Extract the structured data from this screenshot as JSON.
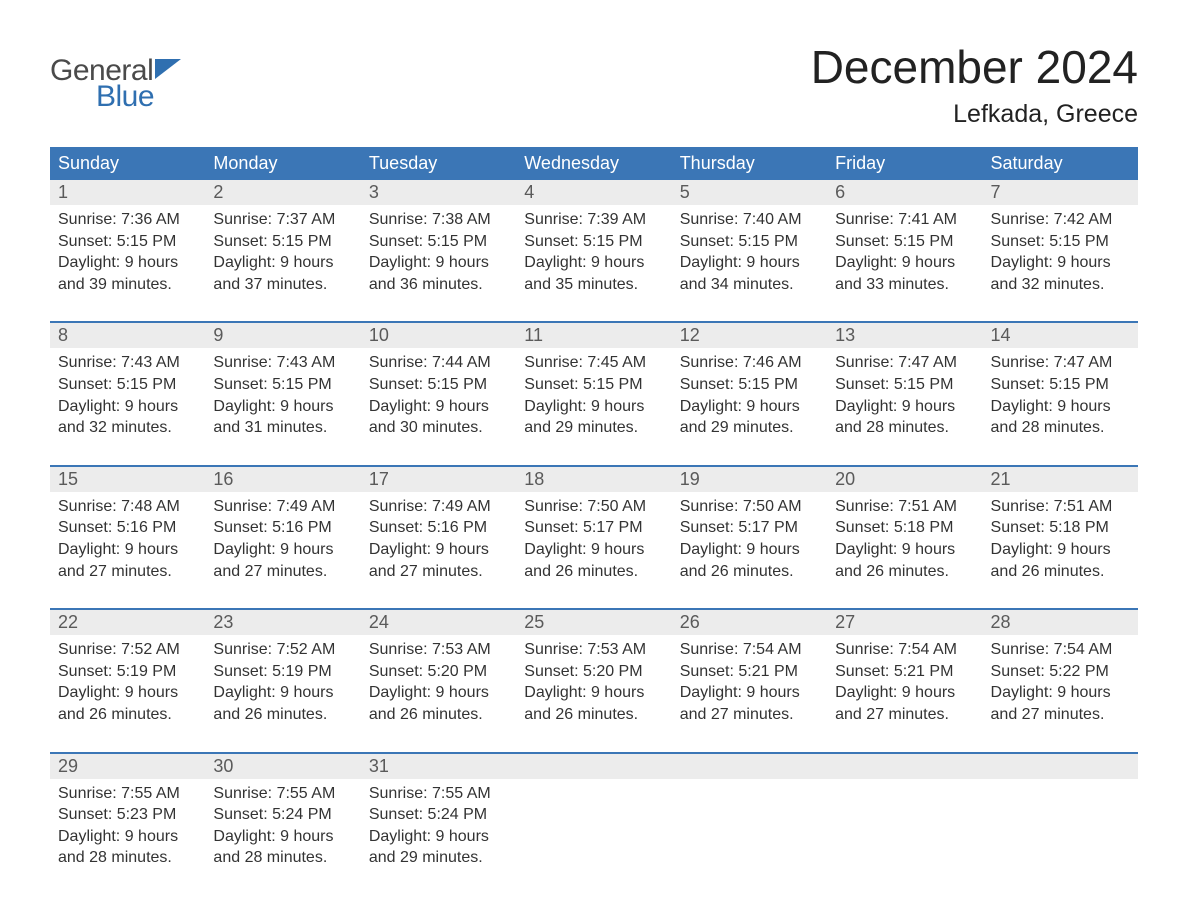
{
  "logo": {
    "line1": "General",
    "line2": "Blue",
    "text_color_line1": "#4a4a4a",
    "text_color_line2": "#2f6fb0",
    "triangle_color": "#2f6fb0"
  },
  "header": {
    "month_title": "December 2024",
    "location": "Lefkada, Greece",
    "title_fontsize": 46,
    "location_fontsize": 25,
    "title_color": "#222222"
  },
  "calendar": {
    "type": "table",
    "weekday_header_bg": "#3b76b6",
    "weekday_header_text_color": "#ffffff",
    "week_border_color": "#3b76b6",
    "daynum_bg": "#ececec",
    "daynum_color": "#5a5a5a",
    "body_text_color": "#333333",
    "background_color": "#ffffff",
    "weekdays": [
      "Sunday",
      "Monday",
      "Tuesday",
      "Wednesday",
      "Thursday",
      "Friday",
      "Saturday"
    ],
    "weeks": [
      [
        {
          "day": "1",
          "sunrise": "Sunrise: 7:36 AM",
          "sunset": "Sunset: 5:15 PM",
          "dl1": "Daylight: 9 hours",
          "dl2": "and 39 minutes."
        },
        {
          "day": "2",
          "sunrise": "Sunrise: 7:37 AM",
          "sunset": "Sunset: 5:15 PM",
          "dl1": "Daylight: 9 hours",
          "dl2": "and 37 minutes."
        },
        {
          "day": "3",
          "sunrise": "Sunrise: 7:38 AM",
          "sunset": "Sunset: 5:15 PM",
          "dl1": "Daylight: 9 hours",
          "dl2": "and 36 minutes."
        },
        {
          "day": "4",
          "sunrise": "Sunrise: 7:39 AM",
          "sunset": "Sunset: 5:15 PM",
          "dl1": "Daylight: 9 hours",
          "dl2": "and 35 minutes."
        },
        {
          "day": "5",
          "sunrise": "Sunrise: 7:40 AM",
          "sunset": "Sunset: 5:15 PM",
          "dl1": "Daylight: 9 hours",
          "dl2": "and 34 minutes."
        },
        {
          "day": "6",
          "sunrise": "Sunrise: 7:41 AM",
          "sunset": "Sunset: 5:15 PM",
          "dl1": "Daylight: 9 hours",
          "dl2": "and 33 minutes."
        },
        {
          "day": "7",
          "sunrise": "Sunrise: 7:42 AM",
          "sunset": "Sunset: 5:15 PM",
          "dl1": "Daylight: 9 hours",
          "dl2": "and 32 minutes."
        }
      ],
      [
        {
          "day": "8",
          "sunrise": "Sunrise: 7:43 AM",
          "sunset": "Sunset: 5:15 PM",
          "dl1": "Daylight: 9 hours",
          "dl2": "and 32 minutes."
        },
        {
          "day": "9",
          "sunrise": "Sunrise: 7:43 AM",
          "sunset": "Sunset: 5:15 PM",
          "dl1": "Daylight: 9 hours",
          "dl2": "and 31 minutes."
        },
        {
          "day": "10",
          "sunrise": "Sunrise: 7:44 AM",
          "sunset": "Sunset: 5:15 PM",
          "dl1": "Daylight: 9 hours",
          "dl2": "and 30 minutes."
        },
        {
          "day": "11",
          "sunrise": "Sunrise: 7:45 AM",
          "sunset": "Sunset: 5:15 PM",
          "dl1": "Daylight: 9 hours",
          "dl2": "and 29 minutes."
        },
        {
          "day": "12",
          "sunrise": "Sunrise: 7:46 AM",
          "sunset": "Sunset: 5:15 PM",
          "dl1": "Daylight: 9 hours",
          "dl2": "and 29 minutes."
        },
        {
          "day": "13",
          "sunrise": "Sunrise: 7:47 AM",
          "sunset": "Sunset: 5:15 PM",
          "dl1": "Daylight: 9 hours",
          "dl2": "and 28 minutes."
        },
        {
          "day": "14",
          "sunrise": "Sunrise: 7:47 AM",
          "sunset": "Sunset: 5:15 PM",
          "dl1": "Daylight: 9 hours",
          "dl2": "and 28 minutes."
        }
      ],
      [
        {
          "day": "15",
          "sunrise": "Sunrise: 7:48 AM",
          "sunset": "Sunset: 5:16 PM",
          "dl1": "Daylight: 9 hours",
          "dl2": "and 27 minutes."
        },
        {
          "day": "16",
          "sunrise": "Sunrise: 7:49 AM",
          "sunset": "Sunset: 5:16 PM",
          "dl1": "Daylight: 9 hours",
          "dl2": "and 27 minutes."
        },
        {
          "day": "17",
          "sunrise": "Sunrise: 7:49 AM",
          "sunset": "Sunset: 5:16 PM",
          "dl1": "Daylight: 9 hours",
          "dl2": "and 27 minutes."
        },
        {
          "day": "18",
          "sunrise": "Sunrise: 7:50 AM",
          "sunset": "Sunset: 5:17 PM",
          "dl1": "Daylight: 9 hours",
          "dl2": "and 26 minutes."
        },
        {
          "day": "19",
          "sunrise": "Sunrise: 7:50 AM",
          "sunset": "Sunset: 5:17 PM",
          "dl1": "Daylight: 9 hours",
          "dl2": "and 26 minutes."
        },
        {
          "day": "20",
          "sunrise": "Sunrise: 7:51 AM",
          "sunset": "Sunset: 5:18 PM",
          "dl1": "Daylight: 9 hours",
          "dl2": "and 26 minutes."
        },
        {
          "day": "21",
          "sunrise": "Sunrise: 7:51 AM",
          "sunset": "Sunset: 5:18 PM",
          "dl1": "Daylight: 9 hours",
          "dl2": "and 26 minutes."
        }
      ],
      [
        {
          "day": "22",
          "sunrise": "Sunrise: 7:52 AM",
          "sunset": "Sunset: 5:19 PM",
          "dl1": "Daylight: 9 hours",
          "dl2": "and 26 minutes."
        },
        {
          "day": "23",
          "sunrise": "Sunrise: 7:52 AM",
          "sunset": "Sunset: 5:19 PM",
          "dl1": "Daylight: 9 hours",
          "dl2": "and 26 minutes."
        },
        {
          "day": "24",
          "sunrise": "Sunrise: 7:53 AM",
          "sunset": "Sunset: 5:20 PM",
          "dl1": "Daylight: 9 hours",
          "dl2": "and 26 minutes."
        },
        {
          "day": "25",
          "sunrise": "Sunrise: 7:53 AM",
          "sunset": "Sunset: 5:20 PM",
          "dl1": "Daylight: 9 hours",
          "dl2": "and 26 minutes."
        },
        {
          "day": "26",
          "sunrise": "Sunrise: 7:54 AM",
          "sunset": "Sunset: 5:21 PM",
          "dl1": "Daylight: 9 hours",
          "dl2": "and 27 minutes."
        },
        {
          "day": "27",
          "sunrise": "Sunrise: 7:54 AM",
          "sunset": "Sunset: 5:21 PM",
          "dl1": "Daylight: 9 hours",
          "dl2": "and 27 minutes."
        },
        {
          "day": "28",
          "sunrise": "Sunrise: 7:54 AM",
          "sunset": "Sunset: 5:22 PM",
          "dl1": "Daylight: 9 hours",
          "dl2": "and 27 minutes."
        }
      ],
      [
        {
          "day": "29",
          "sunrise": "Sunrise: 7:55 AM",
          "sunset": "Sunset: 5:23 PM",
          "dl1": "Daylight: 9 hours",
          "dl2": "and 28 minutes."
        },
        {
          "day": "30",
          "sunrise": "Sunrise: 7:55 AM",
          "sunset": "Sunset: 5:24 PM",
          "dl1": "Daylight: 9 hours",
          "dl2": "and 28 minutes."
        },
        {
          "day": "31",
          "sunrise": "Sunrise: 7:55 AM",
          "sunset": "Sunset: 5:24 PM",
          "dl1": "Daylight: 9 hours",
          "dl2": "and 29 minutes."
        },
        null,
        null,
        null,
        null
      ]
    ]
  }
}
